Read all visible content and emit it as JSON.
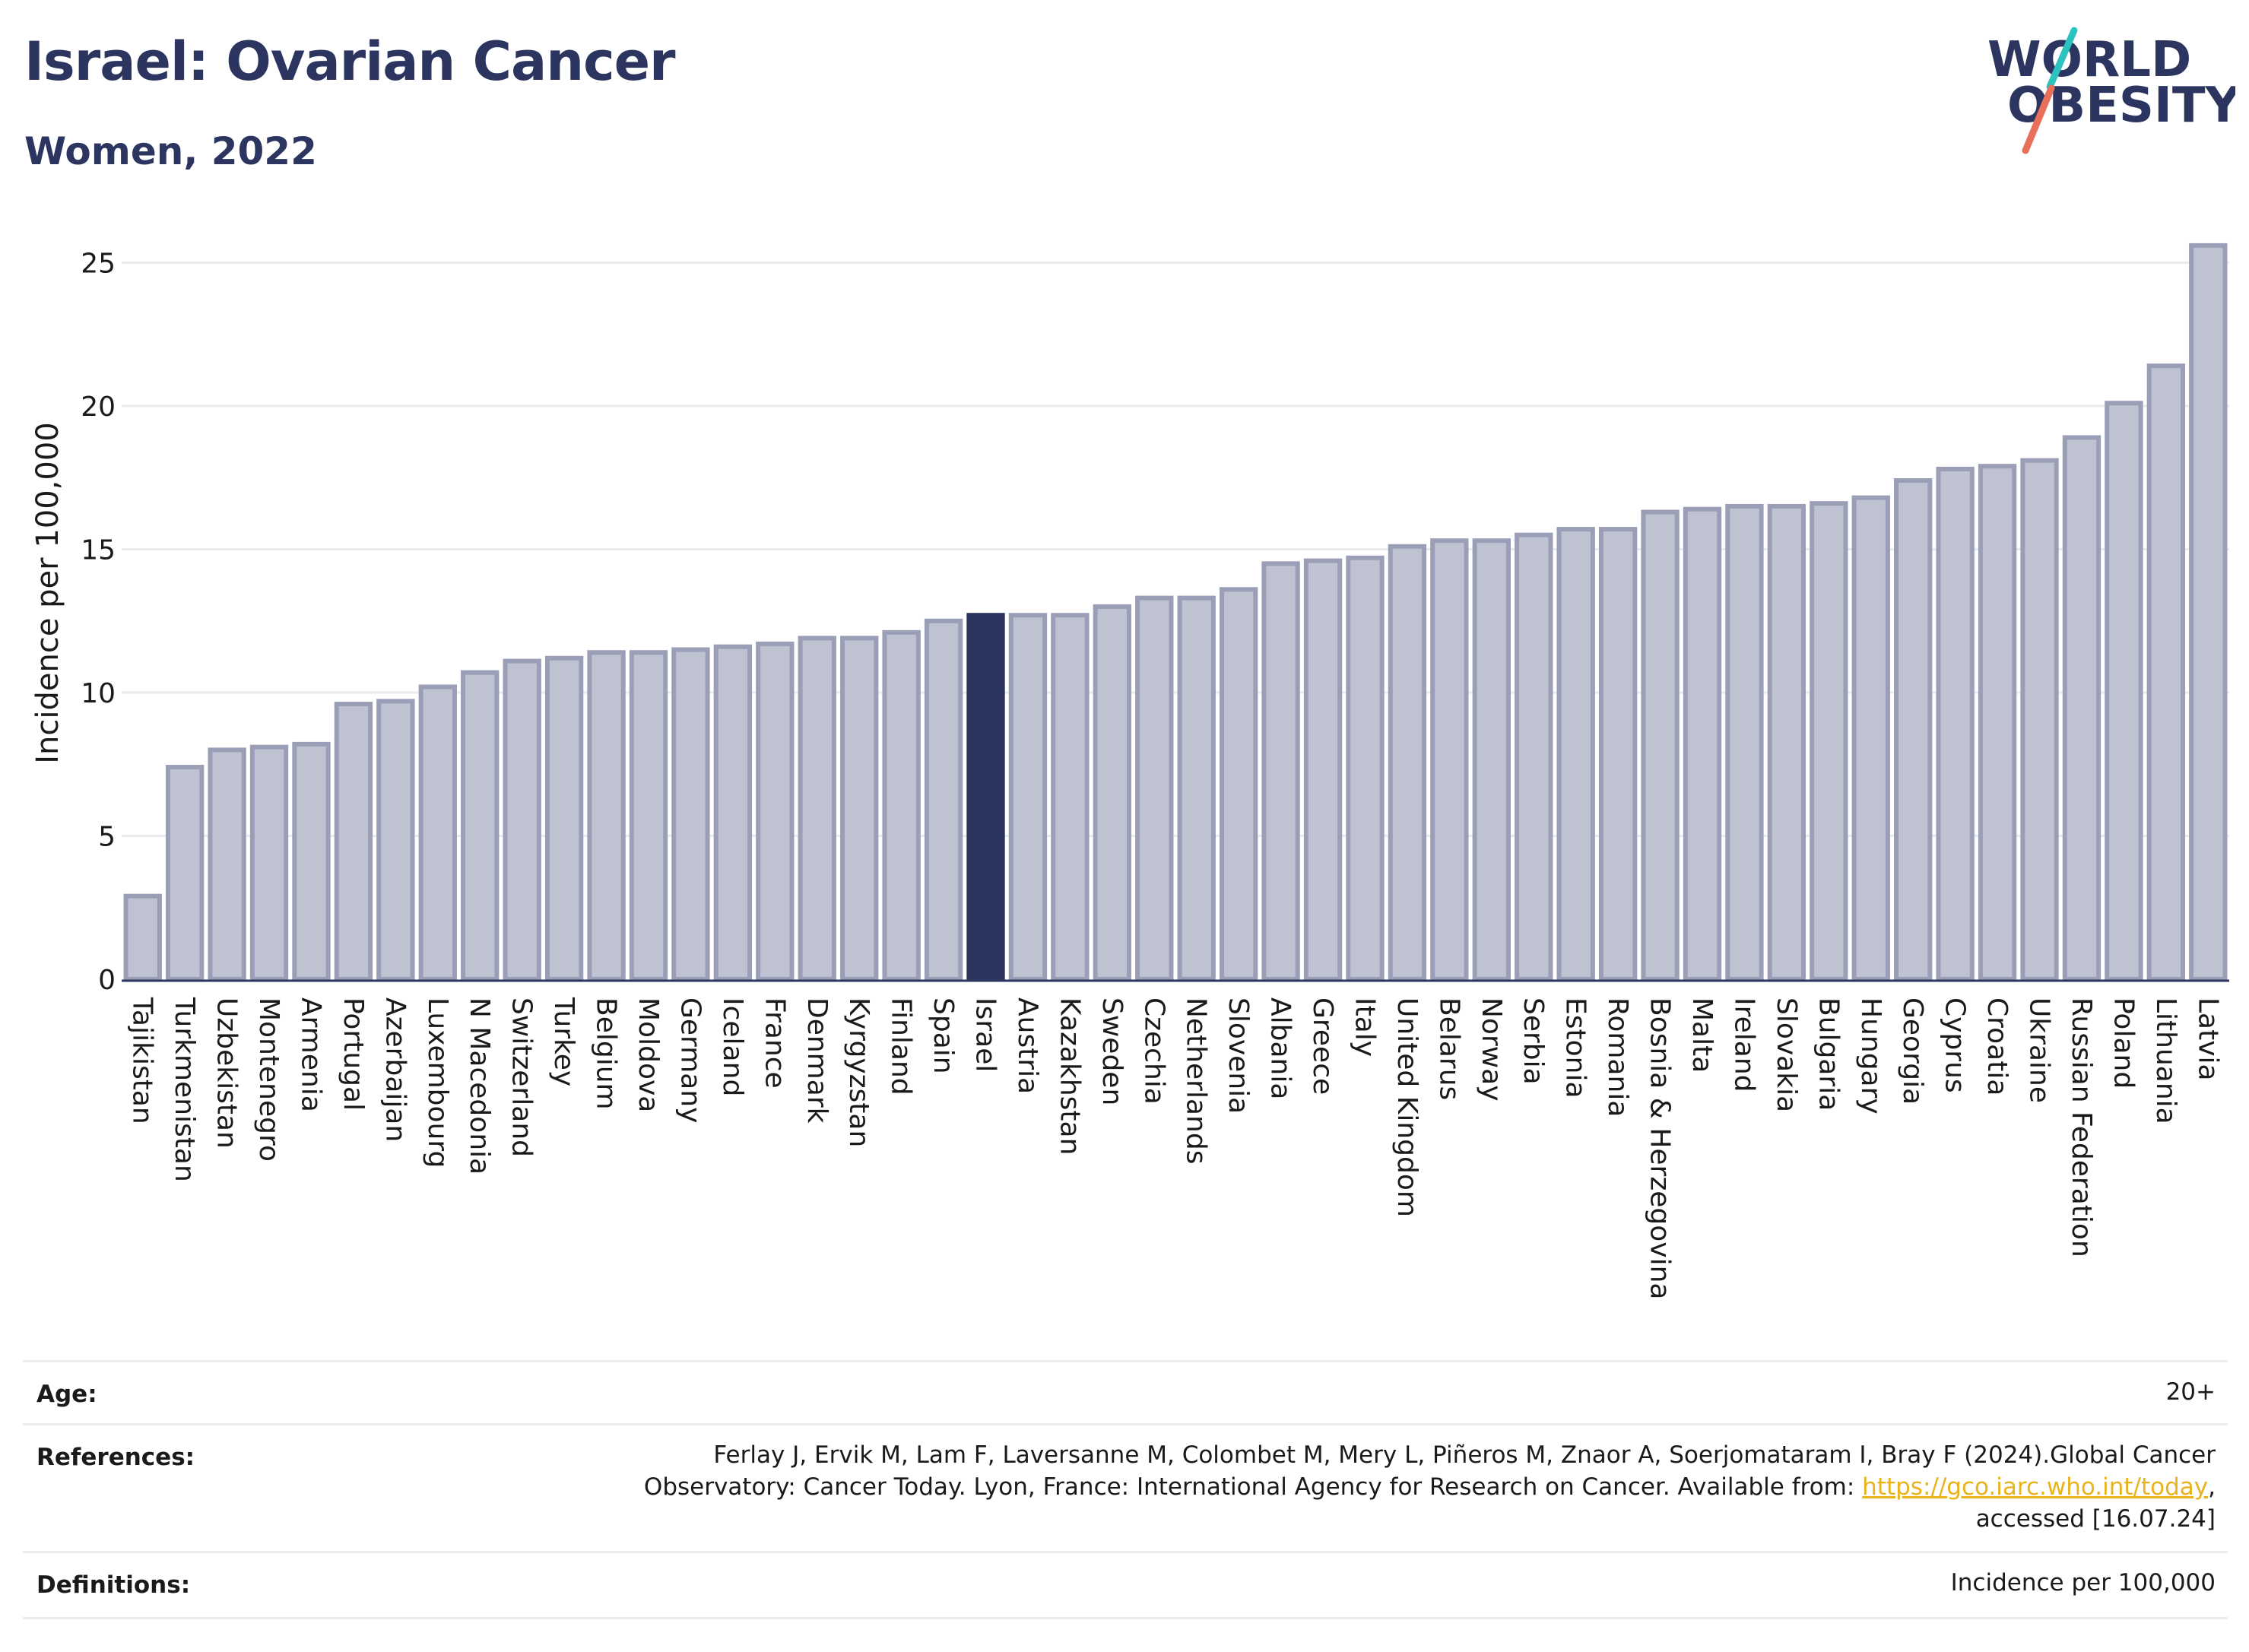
{
  "header": {
    "title": "Israel: Ovarian Cancer",
    "subtitle": "Women, 2022",
    "logo_line1": "WORLD",
    "logo_line2": "OBESITY"
  },
  "colors": {
    "bar": "#bfc3d1",
    "bar_border": "#9a9fb7",
    "highlight": "#2b3560",
    "title": "#2b3560",
    "logo_teal": "#2cc3bf",
    "logo_coral": "#e8705a"
  },
  "chart_data": {
    "type": "bar",
    "title": "",
    "xlabel": "",
    "ylabel": "Incidence per 100,000",
    "ylim": [
      0,
      26
    ],
    "yticks": [
      0,
      5,
      10,
      15,
      20,
      25
    ],
    "grid": true,
    "highlight": "Israel",
    "categories": [
      "Tajikistan",
      "Turkmenistan",
      "Uzbekistan",
      "Montenegro",
      "Armenia",
      "Portugal",
      "Azerbaijan",
      "Luxembourg",
      "N Macedonia",
      "Switzerland",
      "Turkey",
      "Belgium",
      "Moldova",
      "Germany",
      "Iceland",
      "France",
      "Denmark",
      "Kyrgyzstan",
      "Finland",
      "Spain",
      "Israel",
      "Austria",
      "Kazakhstan",
      "Sweden",
      "Czechia",
      "Netherlands",
      "Slovenia",
      "Albania",
      "Greece",
      "Italy",
      "United Kingdom",
      "Belarus",
      "Norway",
      "Serbia",
      "Estonia",
      "Romania",
      "Bosnia & Herzegovina",
      "Malta",
      "Ireland",
      "Slovakia",
      "Bulgaria",
      "Hungary",
      "Georgia",
      "Cyprus",
      "Croatia",
      "Ukraine",
      "Russian Federation",
      "Poland",
      "Lithuania",
      "Latvia"
    ],
    "values": [
      2.9,
      7.4,
      8.0,
      8.1,
      8.2,
      9.6,
      9.7,
      10.2,
      10.7,
      11.1,
      11.2,
      11.4,
      11.4,
      11.5,
      11.6,
      11.7,
      11.9,
      11.9,
      12.1,
      12.5,
      12.7,
      12.7,
      12.7,
      13.0,
      13.3,
      13.3,
      13.6,
      14.5,
      14.6,
      14.7,
      15.1,
      15.3,
      15.3,
      15.5,
      15.7,
      15.7,
      16.3,
      16.4,
      16.5,
      16.5,
      16.6,
      16.8,
      17.4,
      17.8,
      17.9,
      18.1,
      18.9,
      20.1,
      21.4,
      25.6
    ]
  },
  "footer": {
    "age_label": "Age:",
    "age_value": "20+",
    "references_label": "References:",
    "references_line1": "Ferlay J, Ervik M, Lam F, Laversanne M, Colombet M, Mery L, Piñeros M, Znaor A, Soerjomataram I, Bray F (2024).Global Cancer",
    "references_line2_pre": "Observatory: Cancer Today. Lyon, France: International Agency for Research on Cancer. Available from: ",
    "references_link": "https://gco.iarc.who.int/today",
    "references_line2_post": ",",
    "references_line3": "accessed [16.07.24]",
    "definitions_label": "Definitions:",
    "definitions_value": "Incidence per 100,000"
  }
}
